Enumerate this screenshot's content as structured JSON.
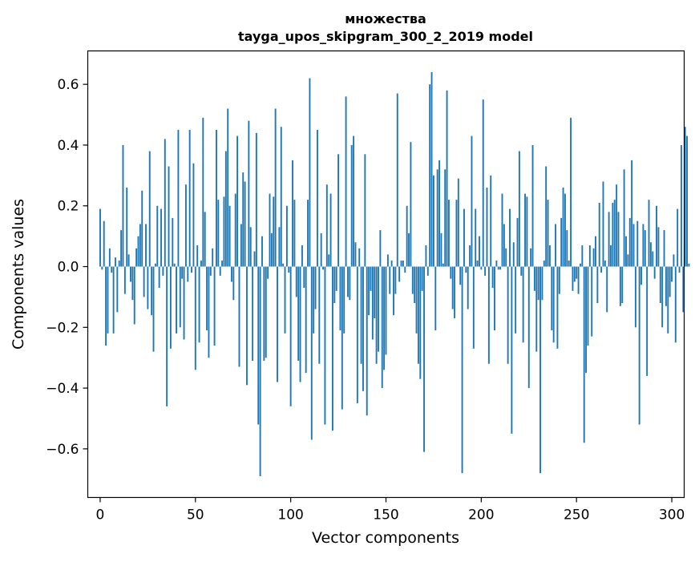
{
  "chart_data": {
    "type": "bar",
    "title": "множества",
    "subtitle": "tayga_upos_skipgram_300_2_2019 model",
    "xlabel": "Vector components",
    "ylabel": "Components values",
    "xlim": [
      -6.5,
      306.5
    ],
    "ylim": [
      -0.76,
      0.71
    ],
    "xticks": [
      0,
      50,
      100,
      150,
      200,
      250,
      300
    ],
    "yticks": [
      -0.6,
      -0.4,
      -0.2,
      0.0,
      0.2,
      0.4,
      0.6
    ],
    "ytick_labels": [
      "−0.6",
      "−0.4",
      "−0.2",
      "0.0",
      "0.2",
      "0.4",
      "0.6"
    ],
    "bar_color": "#1f77b4",
    "values": [
      0.19,
      -0.01,
      0.15,
      -0.26,
      -0.22,
      0.06,
      -0.02,
      -0.22,
      0.03,
      -0.15,
      0.02,
      0.12,
      0.4,
      -0.09,
      0.26,
      0.04,
      -0.05,
      -0.11,
      -0.19,
      0.06,
      0.1,
      0.14,
      0.25,
      -0.1,
      0.14,
      -0.14,
      0.38,
      -0.16,
      -0.28,
      0.01,
      0.2,
      -0.07,
      0.19,
      -0.03,
      0.42,
      -0.46,
      0.33,
      -0.27,
      0.16,
      0.01,
      -0.22,
      0.45,
      -0.2,
      -0.04,
      -0.24,
      0.27,
      -0.05,
      0.45,
      -0.02,
      0.34,
      -0.34,
      0.07,
      -0.25,
      0.02,
      0.49,
      0.18,
      -0.21,
      -0.3,
      -0.03,
      0.06,
      -0.26,
      0.45,
      0.22,
      -0.03,
      0.02,
      0.23,
      0.38,
      0.52,
      0.2,
      -0.05,
      -0.11,
      0.24,
      0.43,
      -0.33,
      0.14,
      0.31,
      0.28,
      -0.39,
      0.48,
      0.13,
      -0.31,
      0.05,
      0.44,
      -0.52,
      -0.69,
      0.1,
      -0.31,
      -0.3,
      -0.04,
      0.24,
      0.11,
      0.23,
      0.52,
      -0.38,
      0.13,
      0.46,
      0.01,
      -0.22,
      0.2,
      -0.02,
      -0.46,
      0.35,
      0.22,
      -0.1,
      -0.31,
      -0.38,
      0.07,
      -0.07,
      -0.35,
      0.22,
      0.62,
      -0.57,
      -0.22,
      -0.14,
      0.45,
      -0.32,
      0.11,
      -0.01,
      -0.52,
      0.27,
      0.04,
      0.24,
      -0.54,
      -0.12,
      -0.08,
      0.37,
      -0.21,
      -0.47,
      -0.22,
      0.56,
      -0.1,
      -0.11,
      0.4,
      0.43,
      0.08,
      -0.45,
      0.06,
      -0.32,
      -0.41,
      0.37,
      -0.49,
      -0.16,
      -0.08,
      -0.24,
      -0.17,
      -0.32,
      -0.28,
      0.12,
      -0.4,
      -0.34,
      -0.29,
      0.04,
      -0.09,
      0.02,
      -0.16,
      -0.09,
      0.57,
      -0.05,
      0.02,
      0.02,
      -0.02,
      0.2,
      0.11,
      0.41,
      -0.09,
      -0.12,
      -0.22,
      -0.32,
      -0.37,
      -0.08,
      -0.61,
      0.07,
      -0.03,
      0.6,
      0.64,
      0.3,
      -0.21,
      0.32,
      0.35,
      0.11,
      0.01,
      0.32,
      0.58,
      0.22,
      -0.04,
      -0.14,
      -0.17,
      0.22,
      0.29,
      -0.06,
      -0.68,
      0.19,
      -0.02,
      -0.14,
      0.07,
      0.43,
      -0.27,
      0.19,
      0.02,
      0.1,
      -0.01,
      0.55,
      -0.03,
      0.26,
      -0.32,
      0.3,
      -0.07,
      -0.21,
      0.02,
      -0.01,
      -0.01,
      0.24,
      0.14,
      0.06,
      -0.32,
      0.19,
      -0.55,
      0.08,
      -0.22,
      0.16,
      0.38,
      -0.03,
      -0.25,
      0.24,
      0.23,
      -0.4,
      0.06,
      0.4,
      -0.08,
      -0.28,
      -0.11,
      -0.68,
      -0.11,
      0.02,
      0.33,
      0.22,
      0.07,
      -0.21,
      -0.25,
      0.14,
      -0.27,
      -0.09,
      0.16,
      0.26,
      0.24,
      0.12,
      0.02,
      0.49,
      -0.08,
      -0.05,
      -0.04,
      -0.09,
      0.01,
      0.07,
      -0.58,
      -0.35,
      -0.26,
      0.07,
      -0.23,
      0.06,
      0.1,
      -0.12,
      0.21,
      -0.02,
      0.28,
      0.02,
      -0.15,
      0.18,
      0.07,
      0.21,
      0.22,
      0.27,
      0.18,
      -0.13,
      -0.12,
      0.32,
      0.1,
      0.04,
      0.16,
      0.35,
      0.14,
      -0.2,
      0.15,
      -0.52,
      -0.06,
      0.14,
      0.12,
      -0.36,
      0.22,
      0.08,
      0.05,
      -0.04,
      0.2,
      0.13,
      -0.12,
      -0.2,
      0.12,
      -0.13,
      -0.22,
      -0.1,
      -0.05,
      0.04,
      -0.25,
      0.19,
      -0.02,
      0.4,
      -0.15,
      0.46,
      0.43,
      0.01
    ]
  }
}
